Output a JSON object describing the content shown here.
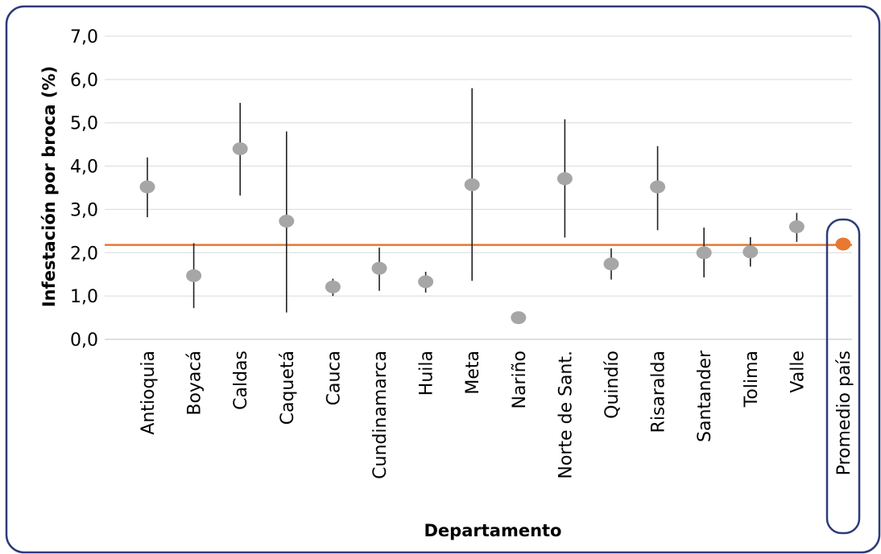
{
  "chart_data": {
    "type": "scatter",
    "xlabel": "Departamento",
    "ylabel": "Infestación por broca (%)",
    "ylim": [
      0,
      7
    ],
    "yticks": [
      "0,0",
      "1,0",
      "2,0",
      "3,0",
      "4,0",
      "5,0",
      "6,0",
      "7,0"
    ],
    "grid": true,
    "categories": [
      "Antioquia",
      "Boyacá",
      "Caldas",
      "Caquetá",
      "Cauca",
      "Cundinamarca",
      "Huila",
      "Meta",
      "Nariño",
      "Norte de Sant.",
      "Quindío",
      "Risaralda",
      "Santander",
      "Tolima",
      "Valle",
      "Promedio país"
    ],
    "values": [
      3.52,
      1.47,
      4.4,
      2.73,
      1.21,
      1.64,
      1.33,
      3.57,
      0.5,
      3.71,
      1.74,
      3.52,
      2.0,
      2.02,
      2.6,
      2.2
    ],
    "error_low": [
      2.82,
      0.72,
      3.32,
      0.62,
      1.0,
      1.12,
      1.08,
      1.35,
      0.5,
      2.35,
      1.38,
      2.52,
      1.43,
      1.68,
      2.25,
      2.08
    ],
    "error_high": [
      4.2,
      2.22,
      5.46,
      4.8,
      1.4,
      2.12,
      1.56,
      5.8,
      0.5,
      5.08,
      2.1,
      4.46,
      2.58,
      2.36,
      2.92,
      2.34
    ],
    "reference_line": {
      "value": 2.18,
      "color": "#E8782F"
    },
    "highlight_category": "Promedio país",
    "colors": {
      "point": "#A6A6A6",
      "highlight_point": "#E8782F",
      "error_bar": "#222222",
      "grid": "#D9D9D9",
      "frame": "#2E3A7A"
    }
  }
}
